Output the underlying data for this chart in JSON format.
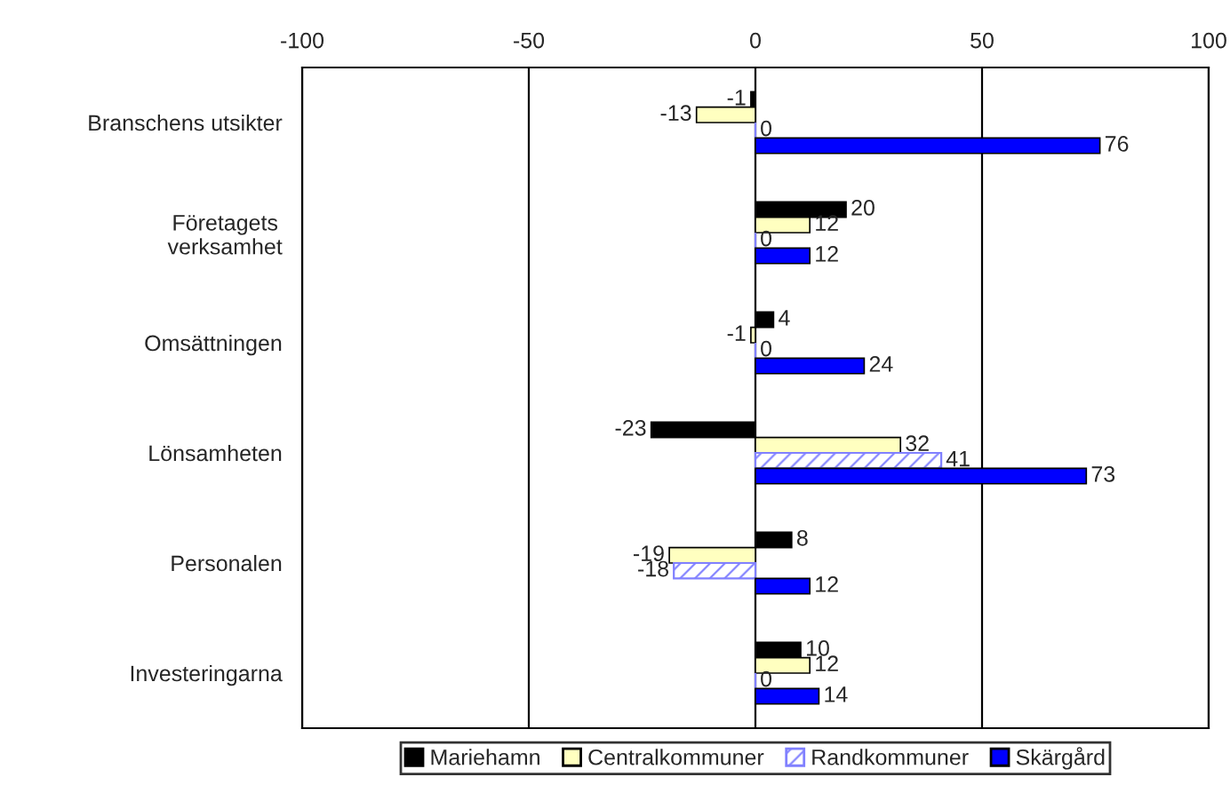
{
  "chart_data": {
    "type": "bar",
    "orientation": "horizontal",
    "categories": [
      "Branschens utsikter",
      "Företagets\nverksamhet",
      "Omsättningen",
      "Lönsamheten",
      "Personalen",
      "Investeringarna"
    ],
    "series": [
      {
        "name": "Mariehamn",
        "color": "#000000",
        "values": [
          -1,
          20,
          4,
          -23,
          8,
          10
        ]
      },
      {
        "name": "Centralkommuner",
        "color": "#ffffc0",
        "values": [
          -13,
          12,
          -1,
          32,
          -19,
          12
        ]
      },
      {
        "name": "Randkommuner",
        "color": "#8080ff",
        "values": [
          0,
          0,
          0,
          41,
          -18,
          0
        ]
      },
      {
        "name": "Skärgård",
        "color": "#0000ff",
        "values": [
          76,
          12,
          24,
          73,
          12,
          14
        ]
      }
    ],
    "xlim": [
      -100,
      100
    ],
    "xticks": [
      -100,
      -50,
      0,
      50,
      100
    ],
    "grid": "x",
    "legend": "bottom",
    "data_labels": true
  }
}
